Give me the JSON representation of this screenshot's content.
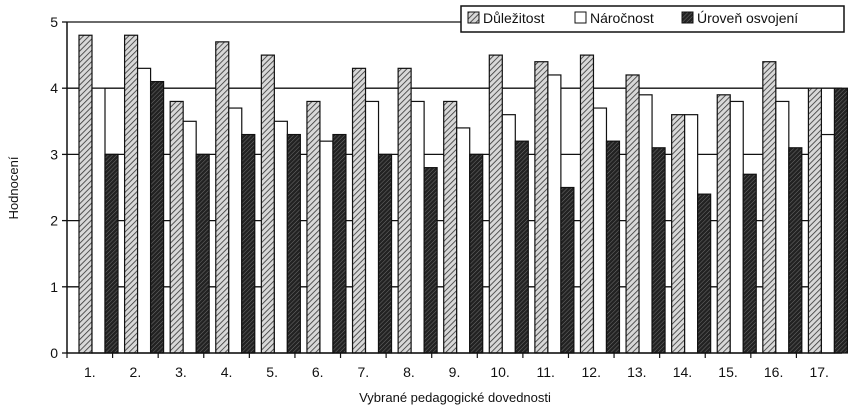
{
  "chart_data": {
    "type": "bar",
    "title": "",
    "xlabel": "Vybrané pedagogické dovednosti",
    "ylabel": "Hodnocení",
    "ylim": [
      0,
      5
    ],
    "yticks": [
      "0",
      "1",
      "2",
      "3",
      "4",
      "5"
    ],
    "grid": "horizontal",
    "legend_position": "top-right",
    "categories": [
      "1.",
      "2.",
      "3.",
      "4.",
      "5.",
      "6.",
      "7.",
      "8.",
      "9.",
      "10.",
      "11.",
      "12.",
      "13.",
      "14.",
      "15.",
      "16.",
      "17."
    ],
    "series": [
      {
        "name": "Důležitost",
        "pattern": "diagonal-hatch",
        "values": [
          4.8,
          4.8,
          3.8,
          4.7,
          4.5,
          3.8,
          4.3,
          4.3,
          3.8,
          4.5,
          4.4,
          4.5,
          4.2,
          3.6,
          3.9,
          4.4,
          4.0
        ]
      },
      {
        "name": "Náročnost",
        "pattern": "white",
        "values": [
          4.0,
          4.3,
          3.5,
          3.7,
          3.5,
          3.2,
          3.8,
          3.8,
          3.4,
          3.6,
          4.2,
          3.7,
          3.9,
          3.6,
          3.8,
          3.8,
          3.3
        ]
      },
      {
        "name": "Úroveň osvojení",
        "pattern": "dark-hatch",
        "values": [
          3.0,
          4.1,
          3.0,
          3.3,
          3.3,
          3.3,
          3.0,
          2.8,
          3.0,
          3.2,
          2.5,
          3.2,
          3.1,
          2.4,
          2.7,
          3.1,
          4.0
        ]
      }
    ]
  }
}
